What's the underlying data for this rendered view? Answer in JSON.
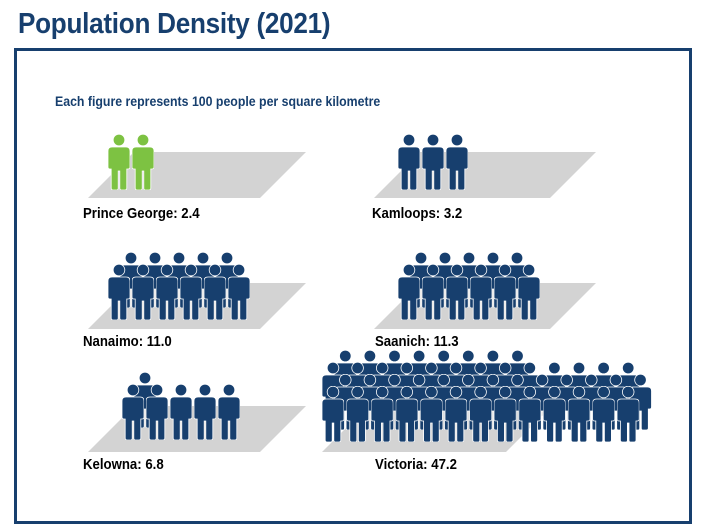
{
  "title": "Population Density (2021)",
  "chart_data": {
    "type": "pictograph",
    "subtitle": "Each figure represents 100 people per square kilometre",
    "unit_per_icon": 100,
    "highlight_color": "#7dc242",
    "default_color": "#173f6e",
    "platform_color": "#d3d3d3",
    "cities": [
      {
        "name": "Prince George",
        "value": 2.4,
        "label": "Prince George: 2.4",
        "highlight": true
      },
      {
        "name": "Kamloops",
        "value": 3.2,
        "label": "Kamloops: 3.2",
        "highlight": false
      },
      {
        "name": "Nanaimo",
        "value": 11.0,
        "label": "Nanaimo: 11.0",
        "highlight": false
      },
      {
        "name": "Saanich",
        "value": 11.3,
        "label": "Saanich: 11.3",
        "highlight": false
      },
      {
        "name": "Kelowna",
        "value": 6.8,
        "label": "Kelowna: 6.8",
        "highlight": false
      },
      {
        "name": "Victoria",
        "value": 47.2,
        "label": "Victoria: 47.2",
        "highlight": false
      }
    ]
  }
}
